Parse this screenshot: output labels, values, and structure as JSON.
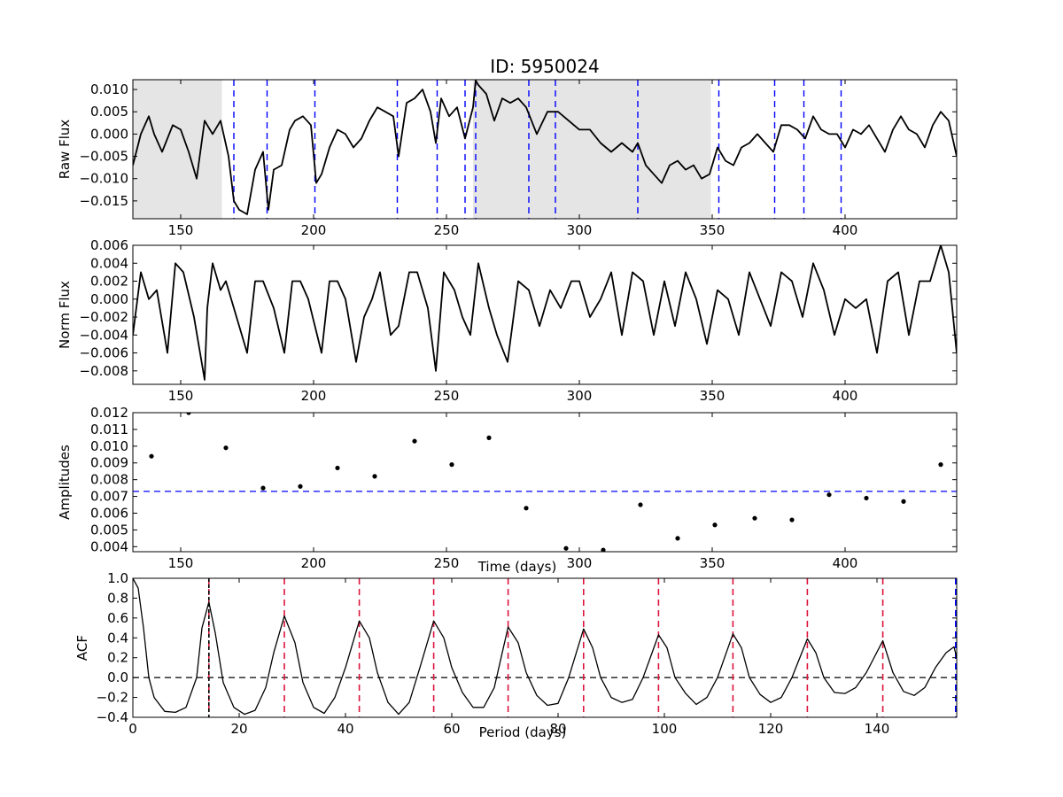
{
  "figure": {
    "title": "ID: 5950024"
  },
  "chart_data": [
    {
      "id": "raw",
      "type": "line",
      "ylabel": "Raw Flux",
      "xlabel": "",
      "xlim": [
        132,
        442
      ],
      "ylim": [
        -0.019,
        0.0122
      ],
      "xticks": [
        150,
        200,
        250,
        300,
        350,
        400
      ],
      "xtick_labels": [
        "150",
        "200",
        "250",
        "300",
        "350",
        "400"
      ],
      "yticks": [
        -0.015,
        -0.01,
        -0.005,
        0.0,
        0.005,
        0.01
      ],
      "ytick_labels": [
        "−0.015",
        "−0.010",
        "−0.005",
        "0.000",
        "0.005",
        "0.010"
      ],
      "shaded_regions": [
        [
          132,
          165.5
        ],
        [
          260,
          349.5
        ]
      ],
      "vlines": [
        170,
        182.5,
        200.5,
        231.5,
        246.5,
        257,
        261,
        281,
        291,
        322,
        352.5,
        373.5,
        384.5,
        398.5
      ],
      "vline_color": "#0000ff",
      "line_color": "#000000",
      "series": [
        {
          "x": [
            132,
            135,
            138,
            140,
            143,
            147,
            150,
            153,
            156,
            159,
            162,
            165,
            168,
            170,
            172,
            175,
            178,
            181,
            183,
            185,
            188,
            191,
            193,
            196,
            199,
            201,
            203,
            206,
            209,
            212,
            215,
            218,
            221,
            224,
            227,
            230,
            232,
            235,
            238,
            241,
            244,
            246,
            248,
            251,
            254,
            257,
            260,
            261,
            262,
            265,
            268,
            271,
            274,
            277,
            280,
            284,
            288,
            292,
            296,
            300,
            304,
            308,
            312,
            316,
            320,
            322,
            325,
            328,
            331,
            334,
            337,
            340,
            343,
            346,
            349,
            352,
            355,
            358,
            361,
            364,
            367,
            370,
            373,
            376,
            379,
            382,
            385,
            388,
            391,
            394,
            397,
            400,
            403,
            406,
            409,
            412,
            415,
            418,
            421,
            424,
            427,
            430,
            433,
            436,
            439,
            442
          ],
          "y": [
            -0.007,
            0.0,
            0.004,
            0.0,
            -0.004,
            0.002,
            0.001,
            -0.004,
            -0.01,
            0.003,
            0.0,
            0.003,
            -0.005,
            -0.015,
            -0.017,
            -0.018,
            -0.008,
            -0.004,
            -0.017,
            -0.008,
            -0.007,
            0.001,
            0.003,
            0.004,
            0.002,
            -0.011,
            -0.009,
            -0.003,
            0.001,
            0.0,
            -0.003,
            -0.001,
            0.003,
            0.006,
            0.005,
            0.004,
            -0.005,
            0.007,
            0.008,
            0.01,
            0.005,
            -0.002,
            0.008,
            0.004,
            0.006,
            -0.001,
            0.006,
            0.012,
            0.011,
            0.009,
            0.003,
            0.008,
            0.007,
            0.008,
            0.006,
            0.0,
            0.005,
            0.005,
            0.003,
            0.001,
            0.001,
            -0.002,
            -0.004,
            -0.002,
            -0.004,
            -0.002,
            -0.007,
            -0.009,
            -0.011,
            -0.007,
            -0.006,
            -0.008,
            -0.007,
            -0.01,
            -0.009,
            -0.003,
            -0.006,
            -0.007,
            -0.003,
            -0.002,
            0.0,
            -0.002,
            -0.004,
            0.002,
            0.002,
            0.001,
            -0.001,
            0.004,
            0.001,
            0.0,
            0.0,
            -0.003,
            0.001,
            0.0,
            0.002,
            -0.001,
            -0.004,
            0.001,
            0.004,
            0.001,
            0.0,
            -0.003,
            0.002,
            0.005,
            0.003,
            -0.005
          ]
        }
      ]
    },
    {
      "id": "norm",
      "type": "line",
      "ylabel": "Norm Flux",
      "xlabel": "",
      "xlim": [
        132,
        442
      ],
      "ylim": [
        -0.0095,
        0.006
      ],
      "xticks": [
        150,
        200,
        250,
        300,
        350,
        400
      ],
      "xtick_labels": [
        "150",
        "200",
        "250",
        "300",
        "350",
        "400"
      ],
      "yticks": [
        -0.008,
        -0.006,
        -0.004,
        -0.002,
        0.0,
        0.002,
        0.004,
        0.006
      ],
      "ytick_labels": [
        "−0.008",
        "−0.006",
        "−0.004",
        "−0.002",
        "0.000",
        "0.002",
        "0.004",
        "0.006"
      ],
      "line_color": "#000000",
      "series": [
        {
          "x": [
            132,
            135,
            138,
            141,
            145,
            148,
            151,
            155,
            159,
            160,
            162,
            163,
            165,
            167,
            171,
            175,
            178,
            181,
            185,
            189,
            192,
            195,
            198,
            203,
            206,
            209,
            212,
            216,
            219,
            222,
            225,
            229,
            232,
            236,
            239,
            243,
            246,
            249,
            253,
            256,
            259,
            262,
            266,
            269,
            273,
            277,
            281,
            285,
            289,
            293,
            297,
            300,
            304,
            308,
            312,
            316,
            320,
            324,
            328,
            332,
            336,
            340,
            344,
            348,
            352,
            356,
            360,
            364,
            368,
            372,
            376,
            380,
            384,
            388,
            392,
            396,
            400,
            404,
            408,
            412,
            416,
            420,
            424,
            428,
            432,
            436,
            439,
            442
          ],
          "y": [
            -0.004,
            0.003,
            0.0,
            0.001,
            -0.006,
            0.004,
            0.003,
            -0.002,
            -0.009,
            -0.001,
            0.004,
            0.003,
            0.001,
            0.002,
            -0.002,
            -0.006,
            0.002,
            0.002,
            -0.001,
            -0.006,
            0.002,
            0.002,
            0.0,
            -0.006,
            0.002,
            0.002,
            0.0,
            -0.007,
            -0.002,
            0.0,
            0.003,
            -0.004,
            -0.003,
            0.003,
            0.003,
            -0.001,
            -0.008,
            0.003,
            0.001,
            -0.002,
            -0.004,
            0.004,
            -0.001,
            -0.004,
            -0.007,
            0.002,
            0.001,
            -0.003,
            0.001,
            -0.001,
            0.002,
            0.002,
            -0.002,
            0.0,
            0.003,
            -0.004,
            0.003,
            0.002,
            -0.004,
            0.002,
            -0.003,
            0.003,
            0.0,
            -0.005,
            0.001,
            0.0,
            -0.004,
            0.003,
            0.0,
            -0.003,
            0.003,
            0.002,
            -0.002,
            0.004,
            0.001,
            -0.004,
            0.0,
            -0.001,
            0.0,
            -0.006,
            0.002,
            0.003,
            -0.004,
            0.002,
            0.002,
            0.006,
            0.003,
            -0.006
          ]
        }
      ]
    },
    {
      "id": "amplitudes",
      "type": "scatter",
      "ylabel": "Amplitudes",
      "xlabel": "Time (days)",
      "xlim": [
        132,
        442
      ],
      "ylim": [
        0.0037,
        0.012
      ],
      "xticks": [
        150,
        200,
        250,
        300,
        350,
        400
      ],
      "xtick_labels": [
        "150",
        "200",
        "250",
        "300",
        "350",
        "400"
      ],
      "yticks": [
        0.004,
        0.005,
        0.006,
        0.007,
        0.008,
        0.009,
        0.01,
        0.011,
        0.012
      ],
      "ytick_labels": [
        "0.004",
        "0.005",
        "0.006",
        "0.007",
        "0.008",
        "0.009",
        "0.010",
        "0.011",
        "0.012"
      ],
      "hline": 0.0073,
      "hline_color": "#0000ff",
      "point_color": "#000000",
      "series": [
        {
          "x": [
            139,
            153,
            167,
            181,
            195,
            209,
            223,
            238,
            252,
            266,
            280,
            295,
            309,
            323,
            337,
            351,
            366,
            380,
            394,
            408,
            422,
            436
          ],
          "y": [
            0.0094,
            0.012,
            0.0099,
            0.0075,
            0.0076,
            0.0087,
            0.0082,
            0.0103,
            0.0089,
            0.0105,
            0.0063,
            0.0039,
            0.0038,
            0.0065,
            0.0045,
            0.0053,
            0.0057,
            0.0056,
            0.0071,
            0.0069,
            0.0067,
            0.0089
          ]
        }
      ]
    },
    {
      "id": "acf",
      "type": "line",
      "ylabel": "ACF",
      "xlabel": "Period (days)",
      "xlim": [
        0,
        155
      ],
      "ylim": [
        -0.4,
        1.0
      ],
      "xticks": [
        0,
        20,
        40,
        60,
        80,
        100,
        120,
        140
      ],
      "xtick_labels": [
        "0",
        "20",
        "40",
        "60",
        "80",
        "100",
        "120",
        "140"
      ],
      "yticks": [
        -0.4,
        -0.2,
        0.0,
        0.2,
        0.4,
        0.6,
        0.8,
        1.0
      ],
      "ytick_labels": [
        "−0.4",
        "−0.2",
        "0.0",
        "0.2",
        "0.4",
        "0.6",
        "0.8",
        "1.0"
      ],
      "hline": 0.0,
      "hline_color": "#000000",
      "period_line": 14.3,
      "period_line_color": "#000000",
      "harmonic_lines": [
        14.3,
        28.5,
        42.6,
        56.6,
        70.6,
        84.8,
        98.9,
        112.9,
        126.9,
        141.1
      ],
      "harmonic_color": "#dc143c",
      "edge_line": 154.8,
      "edge_line_color": "#0000ff",
      "line_color": "#000000",
      "series": [
        {
          "x": [
            0,
            1,
            2,
            3,
            4,
            6,
            8,
            10,
            12,
            13,
            14.3,
            15.5,
            17,
            19,
            21,
            23,
            25,
            26.5,
            28.5,
            30.5,
            32,
            34,
            36,
            38,
            40,
            42.6,
            44.5,
            46,
            48,
            50,
            52,
            54,
            56.6,
            58.5,
            60,
            62,
            64,
            66,
            68,
            70.6,
            72.5,
            74,
            76,
            78,
            80,
            82,
            84.8,
            86.5,
            88,
            90,
            92,
            94,
            96,
            98.9,
            100.5,
            102,
            104,
            106,
            108,
            110,
            112.9,
            114.5,
            116,
            118,
            120,
            122,
            124,
            126.9,
            128.5,
            130,
            132,
            134,
            136,
            138,
            141.1,
            143,
            145,
            147,
            149,
            151,
            153,
            154.5,
            155
          ],
          "y": [
            1.0,
            0.9,
            0.5,
            0.0,
            -0.2,
            -0.34,
            -0.35,
            -0.3,
            0.0,
            0.5,
            0.76,
            0.45,
            -0.05,
            -0.3,
            -0.37,
            -0.33,
            -0.1,
            0.25,
            0.62,
            0.35,
            -0.05,
            -0.3,
            -0.36,
            -0.2,
            0.1,
            0.57,
            0.4,
            0.05,
            -0.25,
            -0.37,
            -0.25,
            0.1,
            0.57,
            0.4,
            0.1,
            -0.15,
            -0.3,
            -0.3,
            -0.1,
            0.51,
            0.35,
            0.05,
            -0.18,
            -0.28,
            -0.26,
            0.0,
            0.49,
            0.3,
            0.0,
            -0.2,
            -0.25,
            -0.22,
            0.0,
            0.43,
            0.3,
            0.0,
            -0.16,
            -0.27,
            -0.2,
            0.0,
            0.44,
            0.3,
            0.0,
            -0.17,
            -0.25,
            -0.2,
            0.0,
            0.39,
            0.25,
            0.0,
            -0.15,
            -0.16,
            -0.1,
            0.05,
            0.37,
            0.05,
            -0.14,
            -0.18,
            -0.1,
            0.1,
            0.25,
            0.31,
            0.2
          ]
        }
      ]
    }
  ]
}
